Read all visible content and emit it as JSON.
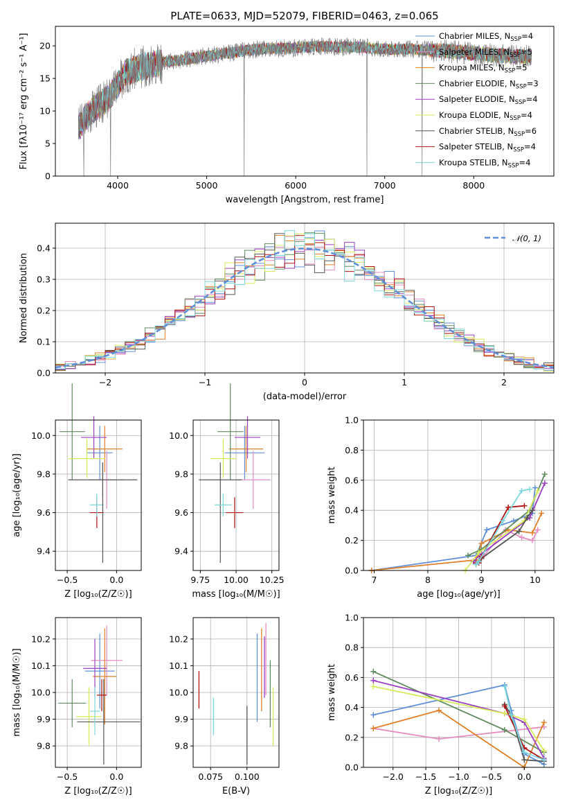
{
  "figure_title": "PLATE=0633, MJD=52079, FIBERID=0463, z=0.065",
  "colors": {
    "Chabrier MILES": "#5f8fd8",
    "Salpeter MILES": "#e58cc0",
    "Kroupa MILES": "#e0802a",
    "Chabrier ELODIE": "#5e8a5e",
    "Salpeter ELODIE": "#9b3fc2",
    "Kroupa ELODIE": "#d6ea5a",
    "Chabrier STELIB": "#555555",
    "Salpeter STELIB": "#b01010",
    "Kroupa STELIB": "#7ad8dc",
    "data": "#7f7f7f",
    "gaussian": "#5f8fd8"
  },
  "chart_data": [
    {
      "type": "line",
      "name": "spectrum",
      "xlabel": "wavelength [Angstrom, rest frame]",
      "ylabel": "Flux [fλ10⁻¹⁷ erg cm⁻² s⁻¹ A⁻¹]",
      "xlim": [
        3300,
        8900
      ],
      "ylim": [
        0,
        23
      ],
      "xticks": [
        "4000",
        "5000",
        "6000",
        "7000",
        "8000"
      ],
      "yticks": [
        "0",
        "5",
        "10",
        "15",
        "20"
      ],
      "grid": false,
      "legend_position": "bottom-right",
      "legend": [
        {
          "label": "Chabrier MILES, N",
          "sub": "SSP",
          "tail": "=4"
        },
        {
          "label": "Salpeter MILES, N",
          "sub": "SSP",
          "tail": "=5"
        },
        {
          "label": "Kroupa MILES, N",
          "sub": "SSP",
          "tail": "=5"
        },
        {
          "label": "Chabrier ELODIE, N",
          "sub": "SSP",
          "tail": "=3"
        },
        {
          "label": "Salpeter ELODIE, N",
          "sub": "SSP",
          "tail": "=4"
        },
        {
          "label": "Kroupa ELODIE, N",
          "sub": "SSP",
          "tail": "=4"
        },
        {
          "label": "Chabrier STELIB, N",
          "sub": "SSP",
          "tail": "=6"
        },
        {
          "label": "Salpeter STELIB, N",
          "sub": "SSP",
          "tail": "=4"
        },
        {
          "label": "Kroupa STELIB, N",
          "sub": "SSP",
          "tail": "=4"
        }
      ],
      "continuum": {
        "x": [
          3560,
          3700,
          3900,
          4000,
          4100,
          4300,
          4500,
          4700,
          4900,
          5100,
          5300,
          5500,
          5700,
          5900,
          6100,
          6300,
          6500,
          6700,
          6900,
          7100,
          7300,
          7500,
          7700,
          7900,
          8100,
          8300,
          8500,
          8650
        ],
        "y": [
          7.5,
          10.0,
          12.0,
          14.0,
          16.0,
          16.8,
          17.5,
          17.8,
          18.2,
          18.7,
          19.0,
          19.4,
          19.6,
          19.6,
          19.8,
          19.9,
          19.8,
          19.8,
          19.6,
          19.5,
          19.5,
          19.3,
          19.2,
          19.0,
          18.7,
          18.5,
          18.4,
          18.3
        ]
      },
      "features": [
        {
          "wavelength": 3620,
          "depth_to": 0
        },
        {
          "wavelength": 3920,
          "depth_to": 0
        },
        {
          "wavelength": 5420,
          "depth_to": 0
        },
        {
          "wavelength": 6800,
          "depth_to": 0
        },
        {
          "wavelength": 7420,
          "depth_to": 0
        }
      ]
    },
    {
      "type": "bar",
      "name": "residual_histogram",
      "xlabel": "(data-model)/error",
      "ylabel": "Normed distribution",
      "xlim": [
        -2.5,
        2.5
      ],
      "ylim": [
        0,
        0.48
      ],
      "xticks": [
        "−2",
        "−1",
        "0",
        "1",
        "2"
      ],
      "yticks": [
        "0.0",
        "0.1",
        "0.2",
        "0.3",
        "0.4"
      ],
      "grid": true,
      "legend_position": "top-right",
      "legend_label": "𝒩(0, 1)",
      "bin_width": 0.1,
      "hist_seeds": [
        1,
        2,
        3,
        4,
        5,
        6,
        7,
        8,
        9
      ]
    },
    {
      "type": "scatter",
      "name": "age_vs_Z",
      "xlabel": "Z [log₁₀(Z/Z☉)]",
      "ylabel": "age  [log₁₀(age/yr)]",
      "xlim": [
        -0.62,
        0.25
      ],
      "ylim": [
        9.3,
        10.08
      ],
      "xticks": [
        "−0.5",
        "0.0"
      ],
      "yticks": [
        "9.4",
        "9.6",
        "9.8",
        "10.0"
      ],
      "grid": true,
      "points": [
        {
          "model": "Chabrier MILES",
          "x": -0.17,
          "y": 9.91,
          "xerr": 0.13,
          "yerr": 0.14
        },
        {
          "model": "Salpeter MILES",
          "x": -0.1,
          "y": 9.77,
          "xerr": 0.18,
          "yerr": 0.15
        },
        {
          "model": "Kroupa MILES",
          "x": -0.12,
          "y": 9.93,
          "xerr": 0.18,
          "yerr": 0.12
        },
        {
          "model": "Chabrier ELODIE",
          "x": -0.45,
          "y": 10.02,
          "xerr": 0.13,
          "yerr": 0.25
        },
        {
          "model": "Salpeter ELODIE",
          "x": -0.23,
          "y": 9.99,
          "xerr": 0.13,
          "yerr": 0.11
        },
        {
          "model": "Kroupa ELODIE",
          "x": -0.3,
          "y": 9.88,
          "xerr": 0.19,
          "yerr": 0.1
        },
        {
          "model": "Chabrier STELIB",
          "x": -0.14,
          "y": 9.77,
          "xerr": 0.35,
          "yerr": 0.09
        },
        {
          "model": "Salpeter STELIB",
          "x": -0.2,
          "y": 9.6,
          "xerr": 0.07,
          "yerr": 0.08
        },
        {
          "model": "Kroupa STELIB",
          "x": -0.2,
          "y": 9.64,
          "xerr": 0.07,
          "yerr": 0.06
        },
        {
          "model": "Chabrier STELIB",
          "x": -0.14,
          "y": 9.6,
          "xerr": 0.0,
          "yerr": 0.26
        }
      ]
    },
    {
      "type": "scatter",
      "name": "age_vs_mass",
      "xlabel": "mass [log₁₀(M/M☉)]",
      "ylabel": "",
      "xlim": [
        9.7,
        10.3
      ],
      "ylim": [
        9.3,
        10.08
      ],
      "xticks": [
        "9.75",
        "10.00",
        "10.25"
      ],
      "yticks": [
        "9.4",
        "9.6",
        "9.8",
        "10.0"
      ],
      "grid": true,
      "points": [
        {
          "model": "Chabrier MILES",
          "x": 10.06,
          "y": 9.91,
          "xerr": 0.14,
          "yerr": 0.14
        },
        {
          "model": "Salpeter MILES",
          "x": 10.12,
          "y": 9.77,
          "xerr": 0.12,
          "yerr": 0.15
        },
        {
          "model": "Kroupa MILES",
          "x": 10.07,
          "y": 9.93,
          "xerr": 0.12,
          "yerr": 0.12
        },
        {
          "model": "Chabrier ELODIE",
          "x": 9.96,
          "y": 10.02,
          "xerr": 0.09,
          "yerr": 0.25
        },
        {
          "model": "Salpeter ELODIE",
          "x": 10.08,
          "y": 9.99,
          "xerr": 0.09,
          "yerr": 0.11
        },
        {
          "model": "Kroupa ELODIE",
          "x": 9.91,
          "y": 9.88,
          "xerr": 0.09,
          "yerr": 0.1
        },
        {
          "model": "Chabrier STELIB",
          "x": 9.89,
          "y": 9.77,
          "xerr": 0.15,
          "yerr": 0.0
        },
        {
          "model": "Chabrier STELIB",
          "x": 9.89,
          "y": 9.6,
          "xerr": 0.0,
          "yerr": 0.26
        },
        {
          "model": "Salpeter STELIB",
          "x": 9.99,
          "y": 9.6,
          "xerr": 0.06,
          "yerr": 0.08
        },
        {
          "model": "Kroupa STELIB",
          "x": 9.91,
          "y": 9.64,
          "xerr": 0.06,
          "yerr": 0.06
        }
      ]
    },
    {
      "type": "line",
      "name": "mass_weight_vs_age",
      "xlabel": "age  [log₁₀(age/yr)]",
      "ylabel": "mass weight",
      "xlim": [
        6.8,
        10.35
      ],
      "ylim": [
        0,
        1.0
      ],
      "xticks": [
        "7",
        "8",
        "9",
        "10"
      ],
      "yticks": [
        "0.0",
        "0.2",
        "0.4",
        "0.6",
        "0.8",
        "1.0"
      ],
      "grid": true,
      "series": [
        {
          "model": "Chabrier MILES",
          "x": [
            6.95,
            8.9,
            9.1,
            9.6,
            9.95,
            10.0
          ],
          "y": [
            0.0,
            0.1,
            0.27,
            0.33,
            0.38,
            0.55
          ]
        },
        {
          "model": "Salpeter MILES",
          "x": [
            8.9,
            9.05,
            9.45,
            9.75,
            9.95,
            10.05
          ],
          "y": [
            0.05,
            0.1,
            0.27,
            0.22,
            0.2,
            0.27
          ]
        },
        {
          "model": "Kroupa MILES",
          "x": [
            6.95,
            8.9,
            9.0,
            9.5,
            9.95,
            10.12
          ],
          "y": [
            0.0,
            0.07,
            0.18,
            0.27,
            0.25,
            0.38
          ]
        },
        {
          "model": "Chabrier ELODIE",
          "x": [
            8.75,
            9.0,
            9.9,
            10.18
          ],
          "y": [
            0.1,
            0.14,
            0.4,
            0.64
          ]
        },
        {
          "model": "Salpeter ELODIE",
          "x": [
            8.85,
            9.0,
            9.9,
            10.18
          ],
          "y": [
            0.06,
            0.11,
            0.35,
            0.58
          ]
        },
        {
          "model": "Kroupa ELODIE",
          "x": [
            8.7,
            8.95,
            9.8,
            10.05
          ],
          "y": [
            0.0,
            0.12,
            0.33,
            0.53
          ]
        },
        {
          "model": "Chabrier STELIB",
          "x": [
            8.9,
            8.95,
            9.0,
            9.7,
            9.85,
            9.95
          ],
          "y": [
            0.04,
            0.06,
            0.08,
            0.26,
            0.35,
            0.4
          ]
        },
        {
          "model": "Salpeter STELIB",
          "x": [
            8.9,
            8.95,
            9.0,
            9.5,
            9.8
          ],
          "y": [
            0.05,
            0.05,
            0.09,
            0.42,
            0.43
          ]
        },
        {
          "model": "Kroupa STELIB",
          "x": [
            8.9,
            8.95,
            9.4,
            9.75,
            9.9
          ],
          "y": [
            0.04,
            0.06,
            0.33,
            0.53,
            0.54
          ]
        }
      ]
    },
    {
      "type": "scatter",
      "name": "mass_vs_Z",
      "xlabel": "Z [log₁₀(Z/Z☉)]",
      "ylabel": "mass [log₁₀(M/M☉)]",
      "xlim": [
        -0.62,
        0.25
      ],
      "ylim": [
        9.72,
        10.28
      ],
      "xticks": [
        "−0.5",
        "0.0"
      ],
      "yticks": [
        "9.8",
        "9.9",
        "10.0",
        "10.1",
        "10.2"
      ],
      "grid": true,
      "points": [
        {
          "model": "Chabrier MILES",
          "x": -0.17,
          "y": 10.08,
          "xerr": 0.15,
          "yerr": 0.14
        },
        {
          "model": "Salpeter MILES",
          "x": -0.1,
          "y": 10.12,
          "xerr": 0.16,
          "yerr": 0.13
        },
        {
          "model": "Kroupa MILES",
          "x": -0.12,
          "y": 10.06,
          "xerr": 0.12,
          "yerr": 0.18
        },
        {
          "model": "Chabrier ELODIE",
          "x": -0.45,
          "y": 9.96,
          "xerr": 0.14,
          "yerr": 0.09
        },
        {
          "model": "Salpeter ELODIE",
          "x": -0.22,
          "y": 10.09,
          "xerr": 0.12,
          "yerr": 0.11
        },
        {
          "model": "Kroupa ELODIE",
          "x": -0.28,
          "y": 9.91,
          "xerr": 0.13,
          "yerr": 0.11
        },
        {
          "model": "Chabrier STELIB",
          "x": -0.08,
          "y": 9.89,
          "xerr": 0.32,
          "yerr": 0.0
        },
        {
          "model": "Chabrier STELIB",
          "x": -0.13,
          "y": 9.89,
          "xerr": 0.0,
          "yerr": 0.16
        },
        {
          "model": "Salpeter STELIB",
          "x": -0.15,
          "y": 9.99,
          "xerr": 0.05,
          "yerr": 0.06
        },
        {
          "model": "Kroupa STELIB",
          "x": -0.22,
          "y": 9.93,
          "xerr": 0.05,
          "yerr": 0.09
        }
      ]
    },
    {
      "type": "scatter",
      "name": "mass_vs_ebv",
      "xlabel": "E(B-V)",
      "ylabel": "",
      "xlim": [
        0.063,
        0.122
      ],
      "ylim": [
        9.72,
        10.28
      ],
      "xticks": [
        "0.075",
        "0.100"
      ],
      "yticks": [
        "9.8",
        "9.9",
        "10.0",
        "10.1",
        "10.2"
      ],
      "grid": true,
      "segments": [
        {
          "model": "Salpeter STELIB",
          "x": 0.067,
          "y0": 9.94,
          "y1": 10.08
        },
        {
          "model": "Kroupa STELIB",
          "x": 0.077,
          "y0": 9.84,
          "y1": 9.98
        },
        {
          "model": "Chabrier STELIB",
          "x": 0.1,
          "y0": 9.73,
          "y1": 9.95
        },
        {
          "model": "Chabrier MILES",
          "x": 0.107,
          "y0": 9.89,
          "y1": 10.22
        },
        {
          "model": "Kroupa MILES",
          "x": 0.11,
          "y0": 9.93,
          "y1": 10.24
        },
        {
          "model": "Salpeter MILES",
          "x": 0.113,
          "y0": 9.99,
          "y1": 10.26
        },
        {
          "model": "Salpeter ELODIE",
          "x": 0.112,
          "y0": 9.98,
          "y1": 10.21
        },
        {
          "model": "Chabrier ELODIE",
          "x": 0.116,
          "y0": 9.87,
          "y1": 10.12
        },
        {
          "model": "Kroupa ELODIE",
          "x": 0.118,
          "y0": 9.8,
          "y1": 10.02
        }
      ]
    },
    {
      "type": "line",
      "name": "mass_weight_vs_Z",
      "xlabel": "Z [log₁₀(Z/Z☉)]",
      "ylabel": "mass weight",
      "xlim": [
        -2.45,
        0.45
      ],
      "ylim": [
        0,
        1.0
      ],
      "xticks": [
        "−2.0",
        "−1.5",
        "−1.0",
        "−0.5",
        "0.0"
      ],
      "yticks": [
        "0.0",
        "0.2",
        "0.4",
        "0.6",
        "0.8",
        "1.0"
      ],
      "grid": true,
      "series": [
        {
          "model": "Chabrier MILES",
          "x": [
            -2.3,
            -0.3,
            -0.2,
            0.0,
            0.3
          ],
          "y": [
            0.35,
            0.55,
            0.38,
            0.09,
            0.02
          ]
        },
        {
          "model": "Salpeter MILES",
          "x": [
            -2.3,
            -1.3,
            0.3
          ],
          "y": [
            0.26,
            0.19,
            0.27
          ]
        },
        {
          "model": "Kroupa MILES",
          "x": [
            -2.3,
            -1.3,
            0.0,
            0.3
          ],
          "y": [
            0.26,
            0.38,
            0.0,
            0.3
          ]
        },
        {
          "model": "Chabrier ELODIE",
          "x": [
            -2.3,
            -0.3,
            0.3
          ],
          "y": [
            0.64,
            0.25,
            0.1
          ]
        },
        {
          "model": "Salpeter ELODIE",
          "x": [
            -2.3,
            -0.3,
            0.0,
            0.3
          ],
          "y": [
            0.58,
            0.36,
            0.3,
            0.06
          ]
        },
        {
          "model": "Kroupa ELODIE",
          "x": [
            -2.3,
            -0.3,
            0.0,
            0.3
          ],
          "y": [
            0.54,
            0.36,
            0.32,
            0.11
          ]
        },
        {
          "model": "Chabrier STELIB",
          "x": [
            -0.3,
            -0.2,
            0.0,
            0.3
          ],
          "y": [
            0.42,
            0.35,
            0.05,
            0.04
          ]
        },
        {
          "model": "Salpeter STELIB",
          "x": [
            -0.3,
            0.0,
            0.3
          ],
          "y": [
            0.41,
            0.13,
            0.05
          ]
        },
        {
          "model": "Kroupa STELIB",
          "x": [
            -0.3,
            -0.2,
            0.0,
            0.3
          ],
          "y": [
            0.54,
            0.35,
            0.1,
            0.05
          ]
        }
      ]
    }
  ]
}
